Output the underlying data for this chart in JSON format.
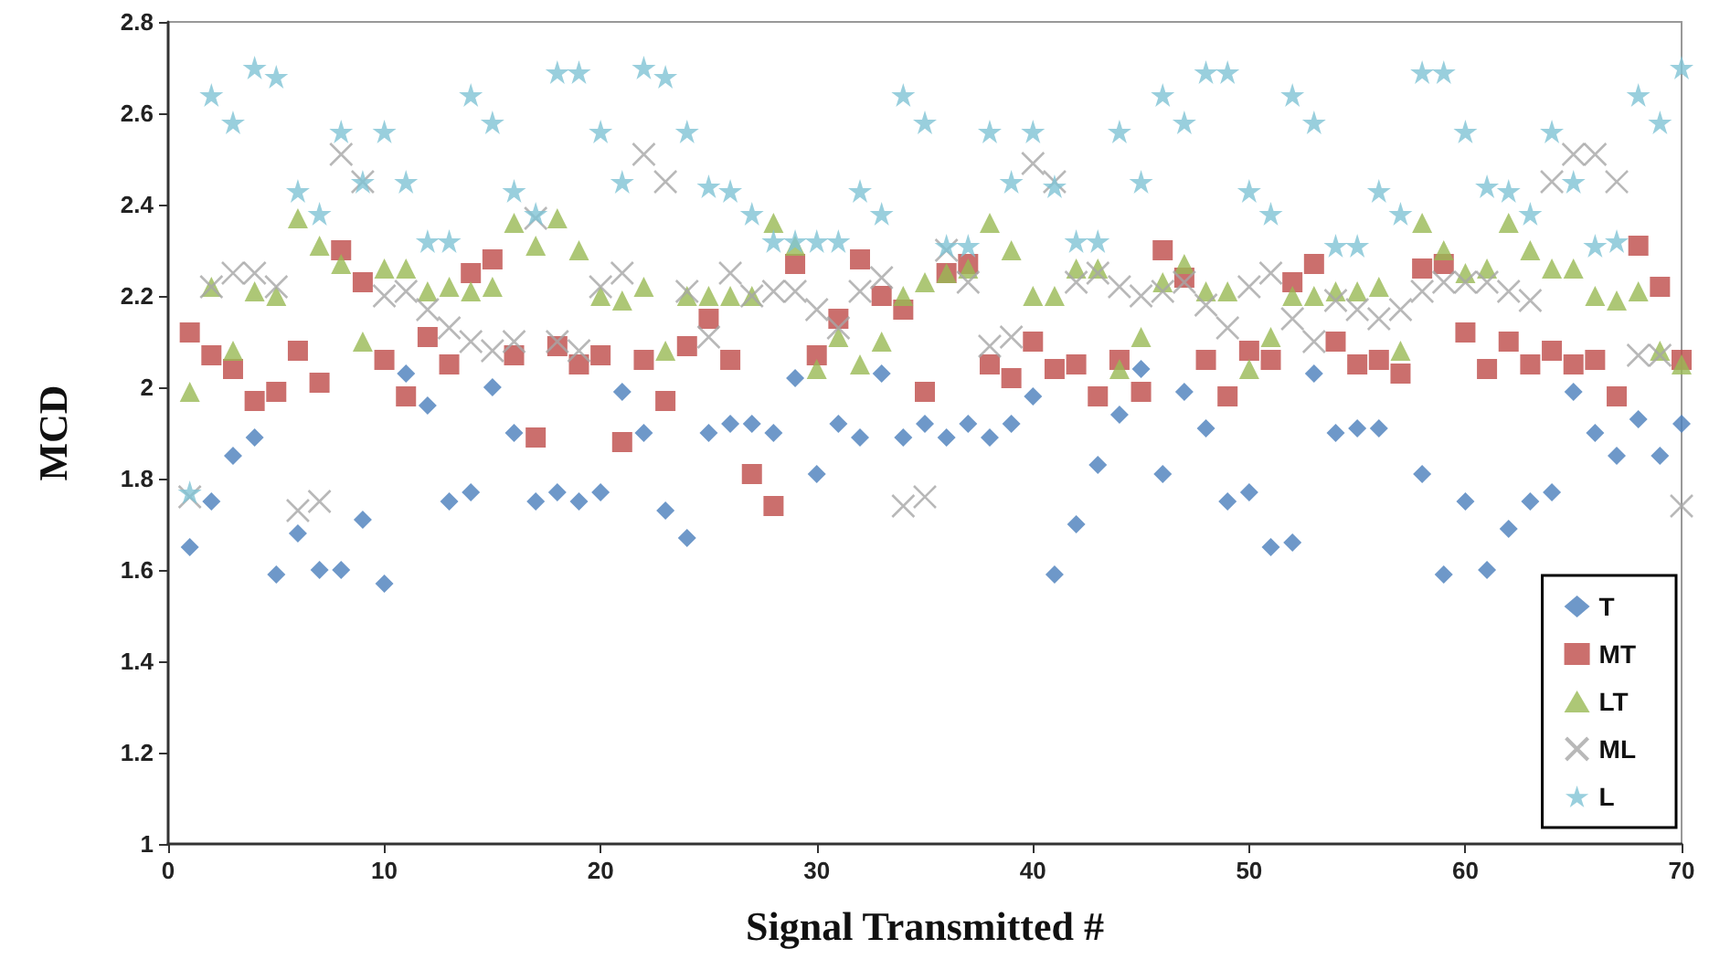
{
  "chart_data": {
    "type": "scatter",
    "xlabel": "Signal Transmitted #",
    "ylabel": "MCD",
    "x": [
      1,
      2,
      3,
      4,
      5,
      6,
      7,
      8,
      9,
      10,
      11,
      12,
      13,
      14,
      15,
      16,
      17,
      18,
      19,
      20,
      21,
      22,
      23,
      24,
      25,
      26,
      27,
      28,
      29,
      30,
      31,
      32,
      33,
      34,
      35,
      36,
      37,
      38,
      39,
      40,
      41,
      42,
      43,
      44,
      45,
      46,
      47,
      48,
      49,
      50,
      51,
      52,
      53,
      54,
      55,
      56,
      57,
      58,
      59,
      60,
      61,
      62,
      63,
      64,
      65,
      66,
      67,
      68,
      69,
      70
    ],
    "xlim": [
      0,
      70
    ],
    "xticks": [
      0,
      10,
      20,
      30,
      40,
      50,
      60,
      70
    ],
    "ylim": [
      1,
      2.8
    ],
    "yticks": [
      1,
      1.2,
      1.4,
      1.6,
      1.8,
      2,
      2.2,
      2.4,
      2.6,
      2.8
    ],
    "grid": false,
    "legend": "bottom right",
    "series": [
      {
        "name": "T",
        "color": "#4a7ebb",
        "marker": "diamond",
        "values": [
          1.65,
          1.75,
          1.85,
          1.89,
          1.59,
          1.68,
          1.6,
          1.6,
          1.71,
          1.57,
          2.03,
          1.96,
          1.75,
          1.77,
          2.0,
          1.9,
          1.75,
          1.77,
          1.75,
          1.77,
          1.99,
          1.9,
          1.73,
          1.67,
          1.9,
          1.92,
          1.92,
          1.9,
          2.02,
          1.81,
          1.92,
          1.89,
          2.03,
          1.89,
          1.92,
          1.89,
          1.92,
          1.89,
          1.92,
          1.98,
          1.59,
          1.7,
          1.83,
          1.94,
          2.04,
          1.81,
          1.99,
          1.91,
          1.75,
          1.77,
          1.65,
          1.66,
          2.03,
          1.9,
          1.91,
          1.91,
          null,
          1.81,
          1.59,
          1.75,
          1.6,
          1.69,
          1.75,
          1.77,
          1.99,
          1.9,
          1.85,
          1.93,
          1.85,
          1.92
        ]
      },
      {
        "name": "MT",
        "color": "#be4b48",
        "marker": "square",
        "values": [
          2.12,
          2.07,
          2.04,
          1.97,
          1.99,
          2.08,
          2.01,
          2.3,
          2.23,
          2.06,
          1.98,
          2.11,
          2.05,
          2.25,
          2.28,
          2.07,
          1.89,
          2.09,
          2.05,
          2.07,
          1.88,
          2.06,
          1.97,
          2.09,
          2.15,
          2.06,
          1.81,
          1.74,
          2.27,
          2.07,
          2.15,
          2.28,
          2.2,
          2.17,
          1.99,
          2.25,
          2.27,
          2.05,
          2.02,
          2.1,
          2.04,
          2.05,
          1.98,
          2.06,
          1.99,
          2.3,
          2.24,
          2.06,
          1.98,
          2.08,
          2.06,
          2.23,
          2.27,
          2.1,
          2.05,
          2.06,
          2.03,
          2.26,
          2.27,
          2.12,
          2.04,
          2.1,
          2.05,
          2.08,
          2.05,
          2.06,
          1.98,
          2.31,
          2.22,
          2.06
        ]
      },
      {
        "name": "LT",
        "color": "#98b954",
        "marker": "triangle",
        "values": [
          1.99,
          2.22,
          2.08,
          2.21,
          2.2,
          2.37,
          2.31,
          2.27,
          2.1,
          2.26,
          2.26,
          2.21,
          2.22,
          2.21,
          2.22,
          2.36,
          2.31,
          2.37,
          2.3,
          2.2,
          2.19,
          2.22,
          2.08,
          2.2,
          2.2,
          2.2,
          2.2,
          2.36,
          2.31,
          2.04,
          2.11,
          2.05,
          2.1,
          2.2,
          2.23,
          2.25,
          2.26,
          2.36,
          2.3,
          2.2,
          2.2,
          2.26,
          2.26,
          2.04,
          2.11,
          2.23,
          2.27,
          2.21,
          2.21,
          2.04,
          2.11,
          2.2,
          2.2,
          2.21,
          2.21,
          2.22,
          2.08,
          2.36,
          2.3,
          2.25,
          2.26,
          2.36,
          2.3,
          2.26,
          2.26,
          2.2,
          2.19,
          2.21,
          2.08,
          2.05
        ]
      },
      {
        "name": "ML",
        "color": "#a6a6a6",
        "marker": "cross",
        "values": [
          1.76,
          2.22,
          2.25,
          2.25,
          2.22,
          1.73,
          1.75,
          2.51,
          2.45,
          2.2,
          2.21,
          2.17,
          2.13,
          2.1,
          2.08,
          2.1,
          2.37,
          2.1,
          2.08,
          2.22,
          2.25,
          2.51,
          2.45,
          2.21,
          2.11,
          2.25,
          2.2,
          2.21,
          2.21,
          2.17,
          2.13,
          2.21,
          2.24,
          1.74,
          1.76,
          2.3,
          2.23,
          2.09,
          2.11,
          2.49,
          2.45,
          2.23,
          2.25,
          2.22,
          2.2,
          2.21,
          2.23,
          2.18,
          2.13,
          2.22,
          2.25,
          2.15,
          2.1,
          2.19,
          2.17,
          2.15,
          2.17,
          2.21,
          2.23,
          2.23,
          2.23,
          2.21,
          2.19,
          2.45,
          2.51,
          2.51,
          2.45,
          2.07,
          2.07,
          1.74
        ]
      },
      {
        "name": "L",
        "color": "#7fc3d4",
        "marker": "star",
        "values": [
          1.77,
          2.64,
          2.58,
          2.7,
          2.68,
          2.43,
          2.38,
          2.56,
          2.45,
          2.56,
          2.45,
          2.32,
          2.32,
          2.64,
          2.58,
          2.43,
          2.38,
          2.69,
          2.69,
          2.56,
          2.45,
          2.7,
          2.68,
          2.56,
          2.44,
          2.43,
          2.38,
          2.32,
          2.32,
          2.32,
          2.32,
          2.43,
          2.38,
          2.64,
          2.58,
          2.31,
          2.31,
          2.56,
          2.45,
          2.56,
          2.44,
          2.32,
          2.32,
          2.56,
          2.45,
          2.64,
          2.58,
          2.69,
          2.69,
          2.43,
          2.38,
          2.64,
          2.58,
          2.31,
          2.31,
          2.43,
          2.38,
          2.69,
          2.69,
          2.56,
          2.44,
          2.43,
          2.38,
          2.56,
          2.45,
          2.31,
          2.32,
          2.64,
          2.58,
          2.7
        ]
      }
    ]
  }
}
